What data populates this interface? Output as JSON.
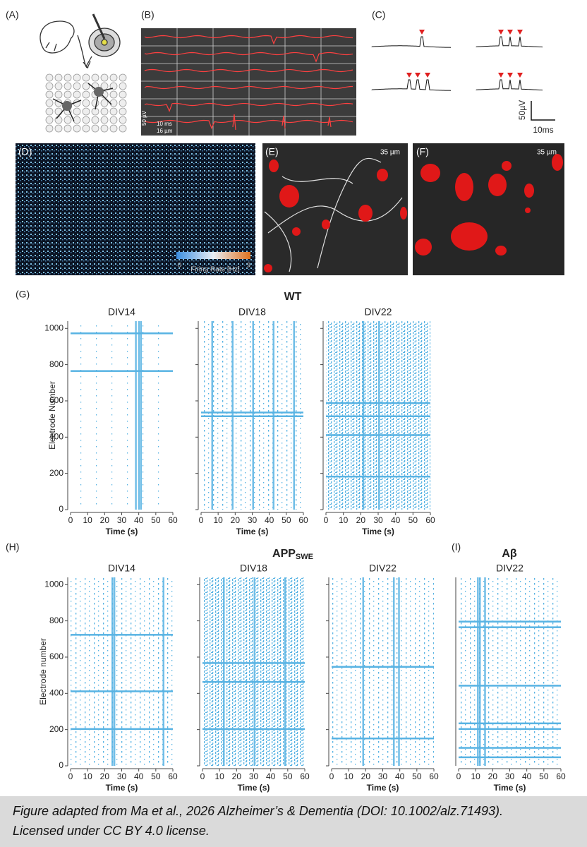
{
  "panels": {
    "a": "(A)",
    "b": "(B)",
    "c": "(C)",
    "d": "(D)",
    "e": "(E)",
    "f": "(F)",
    "g": "(G)",
    "h": "(H)",
    "i": "(I)"
  },
  "b": {
    "scale_v": "50 µV",
    "scale_t": "10 ms",
    "scale_d": "16 µm"
  },
  "c": {
    "scale_v": "50µV",
    "scale_t": "10ms"
  },
  "d": {
    "colorbar_label": "Firing Rate [Hz]",
    "colorbar_ticks": [
      0,
      9
    ]
  },
  "e": {
    "scale": "35 µm"
  },
  "f": {
    "scale": "35 µm"
  },
  "g": {
    "title": "WT",
    "plots": [
      "DIV14",
      "DIV18",
      "DIV22"
    ],
    "y_label": "Electrode Number",
    "x_label": "Time (s)",
    "xlim": [
      0,
      60
    ],
    "xticks": [
      0,
      10,
      20,
      30,
      40,
      50,
      60
    ],
    "ylim": [
      0,
      1040
    ],
    "yticks": [
      0,
      200,
      400,
      600,
      800,
      1000
    ]
  },
  "h": {
    "title": "APP",
    "title_sub": "SWE",
    "plots": [
      "DIV14",
      "DIV18",
      "DIV22"
    ],
    "y_label": "Electrode number",
    "x_label": "Time (s)",
    "xlim": [
      0,
      60
    ],
    "xticks": [
      0,
      10,
      20,
      30,
      40,
      50,
      60
    ],
    "ylim": [
      0,
      1040
    ],
    "yticks": [
      0,
      200,
      400,
      600,
      800,
      1000
    ]
  },
  "i": {
    "title": "Aβ",
    "plots": [
      "DIV22"
    ],
    "x_label": "Time (s)",
    "xlim": [
      0,
      60
    ],
    "xticks": [
      0,
      10,
      20,
      30,
      40,
      50,
      60
    ]
  },
  "caption": [
    "Figure adapted from Ma et al., 2026 Alzheimer’s & Dementia (DOI: 10.1002/alz.71493).",
    "Licensed under CC BY 4.0 license."
  ]
}
